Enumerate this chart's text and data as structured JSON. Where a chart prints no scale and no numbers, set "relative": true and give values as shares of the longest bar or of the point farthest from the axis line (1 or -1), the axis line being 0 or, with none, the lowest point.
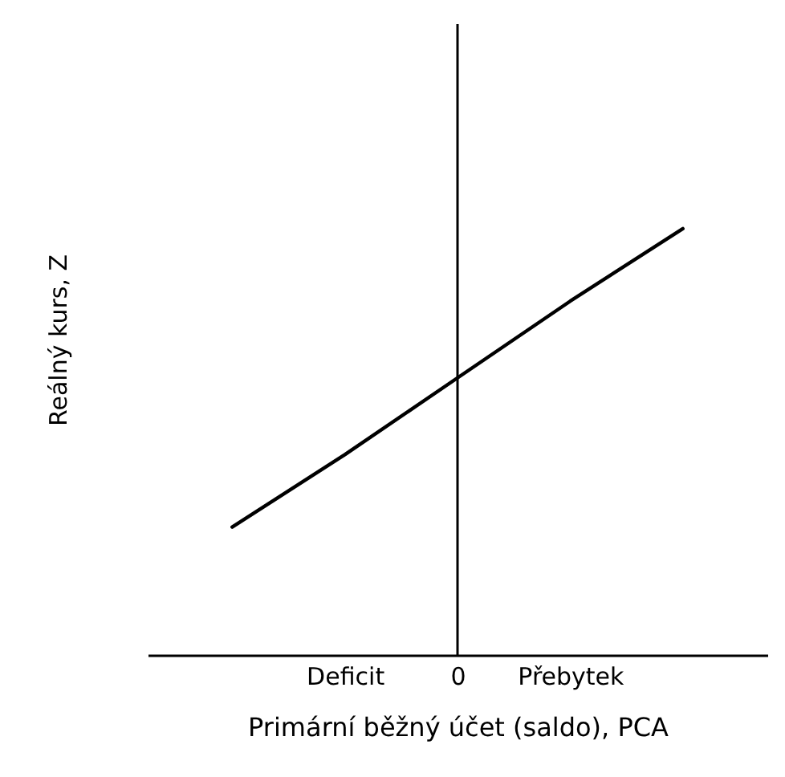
{
  "chart_data": {
    "type": "line",
    "xlabel": "Primární běžný účet (saldo), PCA",
    "ylabel": "Reálný kurs, Z",
    "categories": [
      null,
      "Deficit",
      "0",
      "Přebytek",
      null
    ],
    "series": [
      {
        "color": "#000000",
        "values": [
          0.3,
          0.47,
          0.65,
          0.83,
          1
        ]
      }
    ],
    "relative": true
  }
}
